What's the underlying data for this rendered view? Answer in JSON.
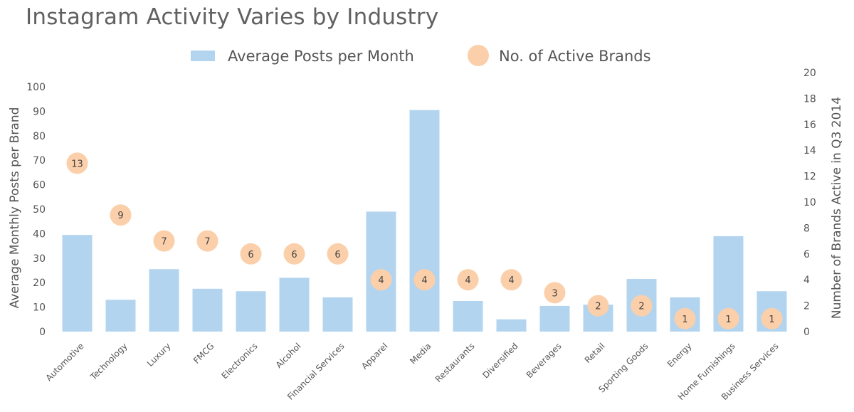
{
  "chart_data": {
    "type": "bar",
    "title": "Instagram Activity Varies by Industry",
    "categories": [
      "Automotive",
      "Technology",
      "Luxury",
      "FMCG",
      "Electronics",
      "Alcohol",
      "Financial Services",
      "Apparel",
      "Media",
      "Restaurants",
      "Diversified",
      "Beverages",
      "Retail",
      "Sporting Goods",
      "Energy",
      "Home Furnishings",
      "Business Services"
    ],
    "series": [
      {
        "name": "Average Posts per Month",
        "type": "bar",
        "axis": "left",
        "color": "#b3d4ef",
        "values": [
          39.5,
          13,
          25.5,
          17.5,
          16.5,
          22,
          14,
          49,
          90.5,
          12.5,
          5,
          10.5,
          11,
          21.5,
          14,
          39,
          16.5
        ]
      },
      {
        "name": "No. of Active Brands",
        "type": "scatter",
        "axis": "right",
        "color": "#fbcfa9",
        "values": [
          13,
          9,
          7,
          7,
          6,
          6,
          6,
          4,
          4,
          4,
          4,
          3,
          2,
          2,
          1,
          1,
          1
        ],
        "labels": [
          "13",
          "9",
          "7",
          "7",
          "6",
          "6",
          "6",
          "4",
          "4",
          "4",
          "4",
          "3",
          "2",
          "2",
          "1",
          "1",
          "1"
        ]
      }
    ],
    "ylabel": "Average Monthly Posts per Brand",
    "y2label": "Number of Brands Active in Q3 2014",
    "ylim": [
      0,
      100
    ],
    "y2lim": [
      0,
      20
    ],
    "yticks": [
      "0",
      "10",
      "20",
      "30",
      "40",
      "50",
      "60",
      "70",
      "80",
      "90",
      "100"
    ],
    "y2ticks": [
      "0",
      "2",
      "4",
      "6",
      "8",
      "10",
      "12",
      "14",
      "16",
      "18",
      "20"
    ],
    "grid": false,
    "legend_position": "top"
  }
}
